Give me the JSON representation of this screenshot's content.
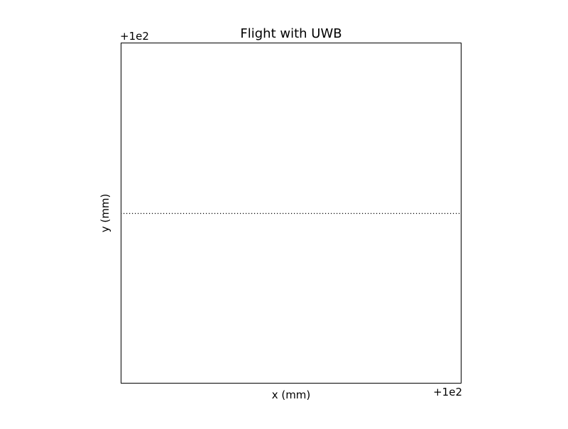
{
  "chart_data": {
    "type": "line",
    "title": "Flight with UWB",
    "xlabel": "x (mm)",
    "ylabel": "y (mm)",
    "x_offset_label": "+1e2",
    "y_offset_label": "+1e2",
    "x_offset": 100,
    "y_offset": 100,
    "xlim": [
      99.945,
      100.055
    ],
    "ylim": [
      99.945,
      100.055
    ],
    "grid": false,
    "series": [
      {
        "line_style": "dotted",
        "color": "#000000",
        "points": [
          [
            99.945,
            100.0
          ],
          [
            100.055,
            100.0
          ]
        ]
      }
    ]
  }
}
